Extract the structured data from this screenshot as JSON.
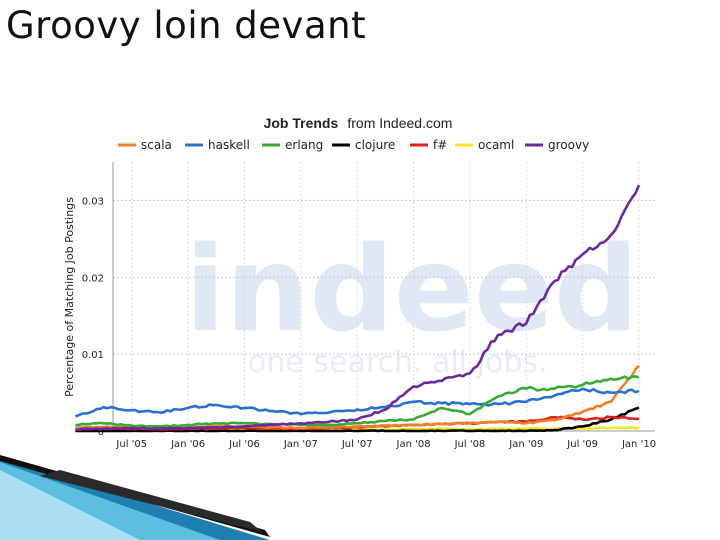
{
  "slide": {
    "title": "Groovy loin devant"
  },
  "chart_data": {
    "type": "line",
    "title": "Job Trends",
    "subtitle": "from Indeed.com",
    "xlabel": "",
    "ylabel": "Percentage of Matching Job Postings",
    "ylim": [
      0,
      0.035
    ],
    "yticks": [
      0,
      0.01,
      0.02,
      0.03
    ],
    "ytick_labels": [
      "0",
      "0.01",
      "0.02",
      "0.03"
    ],
    "xlim": [
      "2005-01",
      "2010-01"
    ],
    "xtick_labels": [
      "Jul '05",
      "Jan '06",
      "Jul '06",
      "Jan '07",
      "Jul '07",
      "Jan '08",
      "Jul '08",
      "Jan '09",
      "Jul '09",
      "Jan '10"
    ],
    "xtick_dates": [
      "2005-07",
      "2006-01",
      "2006-07",
      "2007-01",
      "2007-07",
      "2008-01",
      "2008-07",
      "2009-01",
      "2009-07",
      "2010-01"
    ],
    "grid": true,
    "legend_position": "top",
    "watermark": "indeed — one search. all jobs.",
    "x": [
      "2005-01",
      "2005-04",
      "2005-07",
      "2005-10",
      "2006-01",
      "2006-04",
      "2006-07",
      "2006-10",
      "2007-01",
      "2007-04",
      "2007-07",
      "2007-10",
      "2008-01",
      "2008-04",
      "2008-07",
      "2008-10",
      "2009-01",
      "2009-04",
      "2009-07",
      "2009-10",
      "2010-01"
    ],
    "series": [
      {
        "name": "scala",
        "color": "#f07f2a",
        "values": [
          0.0004,
          0.0005,
          0.0005,
          0.0004,
          0.0005,
          0.0006,
          0.0006,
          0.0005,
          0.0004,
          0.0005,
          0.0006,
          0.0007,
          0.0008,
          0.0009,
          0.001,
          0.0012,
          0.001,
          0.0014,
          0.0025,
          0.0038,
          0.0085
        ]
      },
      {
        "name": "haskell",
        "color": "#2b6fd3",
        "values": [
          0.0019,
          0.0031,
          0.0027,
          0.0024,
          0.003,
          0.0034,
          0.003,
          0.0026,
          0.0022,
          0.0024,
          0.0028,
          0.0031,
          0.0038,
          0.0036,
          0.0035,
          0.0035,
          0.0038,
          0.0046,
          0.0055,
          0.005,
          0.0052
        ]
      },
      {
        "name": "erlang",
        "color": "#3aaa35",
        "values": [
          0.0008,
          0.001,
          0.0007,
          0.0006,
          0.0008,
          0.001,
          0.001,
          0.0009,
          0.0008,
          0.0008,
          0.001,
          0.0013,
          0.0015,
          0.003,
          0.0022,
          0.0045,
          0.0055,
          0.0055,
          0.006,
          0.0068,
          0.007
        ]
      },
      {
        "name": "clojure",
        "color": "#000000",
        "values": [
          0,
          0,
          0,
          0,
          0,
          0,
          0,
          0,
          0,
          0,
          0,
          0,
          0,
          0,
          0,
          0,
          0,
          0.0001,
          0.0006,
          0.0015,
          0.003
        ]
      },
      {
        "name": "f#",
        "color": "#d9221c",
        "values": [
          0.0002,
          0.0003,
          0.0003,
          0.0002,
          0.0003,
          0.0003,
          0.0004,
          0.0003,
          0.0003,
          0.0004,
          0.0005,
          0.0006,
          0.0008,
          0.0009,
          0.001,
          0.0012,
          0.0012,
          0.0018,
          0.0015,
          0.0018,
          0.0016
        ]
      },
      {
        "name": "ocaml",
        "color": "#f5e923",
        "values": [
          0.0002,
          0.0002,
          0.0002,
          0.0002,
          0.0002,
          0.0002,
          0.0002,
          0.0002,
          0.0002,
          0.0002,
          0.0002,
          0.0002,
          0.0002,
          0.0003,
          0.0002,
          0.0003,
          0.0003,
          0.0003,
          0.0003,
          0.0004,
          0.0004
        ]
      },
      {
        "name": "groovy",
        "color": "#6a2a9c",
        "values": [
          0.0002,
          0.0003,
          0.0004,
          0.0003,
          0.0004,
          0.0005,
          0.0006,
          0.0008,
          0.001,
          0.0012,
          0.0015,
          0.0028,
          0.0058,
          0.0065,
          0.0075,
          0.0125,
          0.014,
          0.0195,
          0.023,
          0.0255,
          0.032
        ]
      }
    ]
  }
}
